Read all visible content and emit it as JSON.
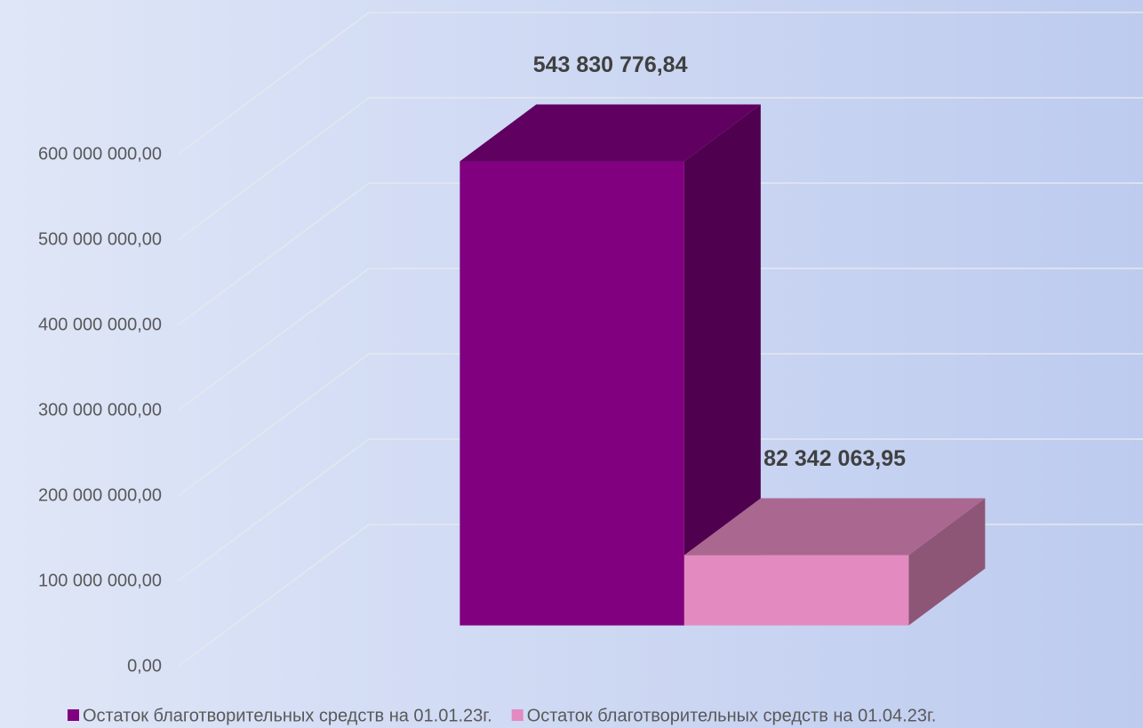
{
  "chart_data": {
    "type": "bar3d",
    "categories": [
      null
    ],
    "series": [
      {
        "name": "Остаток благотворительных средств на 01.01.23г.",
        "color": "#800080",
        "values": [
          543830776.84
        ],
        "value_labels": [
          "543 830 776,84"
        ]
      },
      {
        "name": "Остаток благотворительных средств на 01.04.23г.",
        "color": "#e38ac0",
        "values": [
          82342063.95
        ],
        "value_labels": [
          "82 342 063,95"
        ]
      }
    ],
    "ylim": [
      0,
      600000000
    ],
    "yticks": [
      {
        "value": 0,
        "label": "0,00"
      },
      {
        "value": 100000000,
        "label": "100 000 000,00"
      },
      {
        "value": 200000000,
        "label": "200 000 000,00"
      },
      {
        "value": 300000000,
        "label": "300 000 000,00"
      },
      {
        "value": 400000000,
        "label": "400 000 000,00"
      },
      {
        "value": 500000000,
        "label": "500 000 000,00"
      },
      {
        "value": 600000000,
        "label": "600 000 000,00"
      }
    ],
    "grid": true,
    "legend": "bottom"
  }
}
